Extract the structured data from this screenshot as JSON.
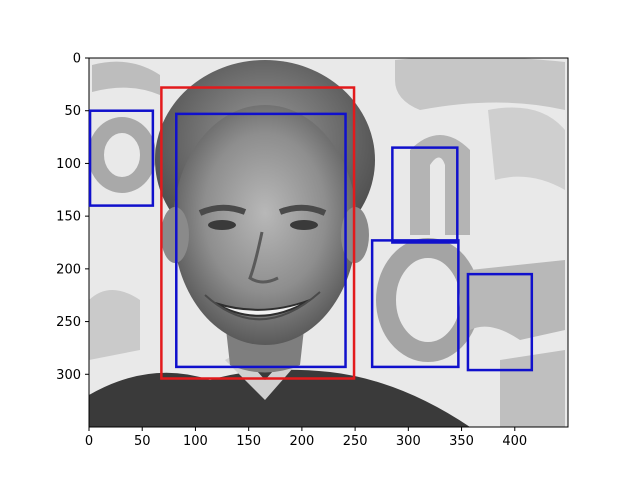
{
  "figure": {
    "description_free": true,
    "image_subject": "grayscale portrait photo of a smiling man with gray hair against a light patterned background",
    "xlim": [
      0,
      450
    ],
    "ylim_top_to_bottom": [
      0,
      350
    ],
    "x_ticks": [
      0,
      50,
      100,
      150,
      200,
      250,
      300,
      350,
      400
    ],
    "y_ticks": [
      0,
      50,
      100,
      150,
      200,
      250,
      300
    ],
    "colors": {
      "detection_face": "#e31a1c",
      "detection_other": "#1010cc",
      "axes": "#000000"
    }
  },
  "boxes": [
    {
      "kind": "face",
      "x0": 68,
      "y0": 28,
      "x1": 249,
      "y1": 304,
      "color": "#e31a1c"
    },
    {
      "kind": "other",
      "x0": 82,
      "y0": 53,
      "x1": 241,
      "y1": 293,
      "color": "#1010cc"
    },
    {
      "kind": "other",
      "x0": 1,
      "y0": 50,
      "x1": 60,
      "y1": 140,
      "color": "#1010cc"
    },
    {
      "kind": "other",
      "x0": 285,
      "y0": 85,
      "x1": 346,
      "y1": 175,
      "color": "#1010cc"
    },
    {
      "kind": "other",
      "x0": 266,
      "y0": 173,
      "x1": 347,
      "y1": 293,
      "color": "#1010cc"
    },
    {
      "kind": "other",
      "x0": 356,
      "y0": 205,
      "x1": 416,
      "y1": 296,
      "color": "#1010cc"
    }
  ]
}
